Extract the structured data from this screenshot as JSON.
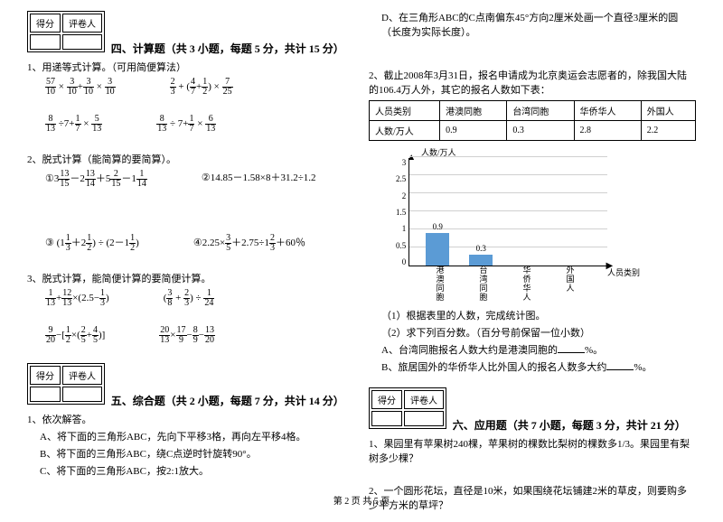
{
  "scorebox": {
    "c1": "得分",
    "c2": "评卷人"
  },
  "sec4": {
    "title": "四、计算题（共 3 小题，每题 5 分，共计 15 分）",
    "q1": "1、用递等式计算。（可用简便算法）",
    "q2": "2、脱式计算（能简算的要简算）。",
    "q2b": "②14.85－1.58×8＋31.2÷1.2",
    "q2d": "④2.25×",
    "q2d2": "＋2.75÷1",
    "q2d3": "＋60％",
    "q3": "3、脱式计算，能简便计算的要简便计算。"
  },
  "sec5": {
    "title": "五、综合题（共 2 小题，每题 7 分，共计 14 分）",
    "q1": "1、依次解答。",
    "a": "A、将下面的三角形ABC，先向下平移3格，再向左平移4格。",
    "b": "B、将下面的三角形ABC，绕C点逆时针旋转90°。",
    "c": "C、将下面的三角形ABC，按2:1放大。",
    "d": "D、在三角形ABC的C点南偏东45°方向2厘米处画一个直径3厘米的圆（长度为实际长度）。"
  },
  "q2intro": "2、截止2008年3月31日，报名申请成为北京奥运会志愿者的，除我国大陆的106.4万人外，其它的报名人数如下表：",
  "table": {
    "h1": "人员类别",
    "h2": "港澳同胞",
    "h3": "台湾同胞",
    "h4": "华侨华人",
    "h5": "外国人",
    "r1": "人数/万人",
    "v2": "0.9",
    "v3": "0.3",
    "v4": "2.8",
    "v5": "2.2"
  },
  "chart": {
    "ylabel": "人数/万人",
    "yticks": [
      "3",
      "2.5",
      "2",
      "1.5",
      "1",
      "0.5",
      "0"
    ],
    "bars": [
      {
        "label": "港澳同胞",
        "value": 0.9,
        "text": "0.9"
      },
      {
        "label": "台湾同胞",
        "value": 0.3,
        "text": "0.3"
      },
      {
        "label": "华侨华人",
        "value": null,
        "text": ""
      },
      {
        "label": "外国人",
        "value": null,
        "text": ""
      }
    ],
    "xlabel": "人员类别",
    "ymax": 3,
    "bar_color": "#5b9bd5"
  },
  "sub": {
    "s1": "（1）根据表里的人数，完成统计图。",
    "s2": "（2）求下列百分数。（百分号前保留一位小数）",
    "sa": "A、台湾同胞报名人数大约是港澳同胞的",
    "sb": "B、旅居国外的华侨华人比外国人的报名人数多大约",
    "pct": "%。"
  },
  "sec6": {
    "title": "六、应用题（共 7 小题，每题 3 分，共计 21 分）",
    "q1": "1、果园里有苹果树240棵，苹果树的棵数比梨树的棵数多1/3。果园里有梨树多少棵？",
    "q2": "2、一个圆形花坛，直径是10米，如果围绕花坛铺建2米的草皮，则要购多少平方米的草坪？"
  },
  "footer": "第 2 页 共 5 页"
}
